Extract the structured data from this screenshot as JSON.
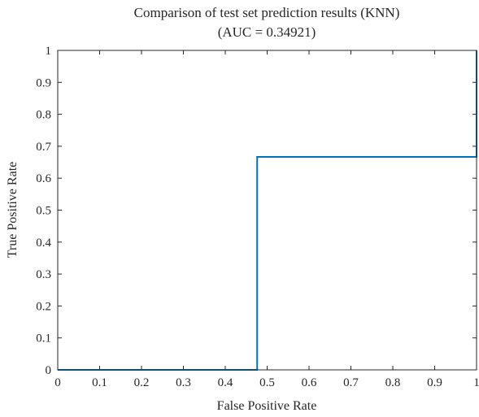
{
  "chart_data": {
    "type": "line",
    "title": "Comparison of test set prediction results (KNN)",
    "subtitle": "(AUC = 0.34921)",
    "xlabel": "False Positive Rate",
    "ylabel": "True Positive Rate",
    "xlim": [
      0,
      1
    ],
    "ylim": [
      0,
      1
    ],
    "grid": false,
    "x_ticks": [
      "0",
      "0.1",
      "0.2",
      "0.3",
      "0.4",
      "0.5",
      "0.6",
      "0.7",
      "0.8",
      "0.9",
      "1"
    ],
    "y_ticks": [
      "0",
      "0.1",
      "0.2",
      "0.3",
      "0.4",
      "0.5",
      "0.6",
      "0.7",
      "0.8",
      "0.9",
      "1"
    ],
    "series": [
      {
        "color": "#0072BD",
        "x": [
          0,
          0.4762,
          0.4762,
          1,
          1
        ],
        "y": [
          0,
          0,
          0.6667,
          0.6667,
          1
        ]
      }
    ]
  }
}
